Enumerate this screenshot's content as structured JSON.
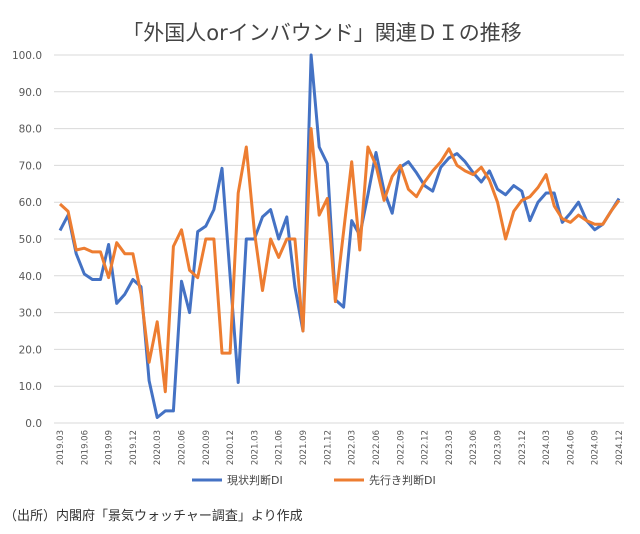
{
  "chart_data": {
    "type": "line",
    "title": "「外国人orインバウンド」関連ＤＩの推移",
    "xlabel": "",
    "ylabel": "",
    "ylim": [
      0,
      100
    ],
    "yticks": [
      "0.0",
      "10.0",
      "20.0",
      "30.0",
      "40.0",
      "50.0",
      "60.0",
      "70.0",
      "80.0",
      "90.0",
      "100.0"
    ],
    "grid": true,
    "legend_position": "bottom",
    "start_month": "2019.03",
    "xtick_labels": [
      "2019.03",
      "2019.06",
      "2019.09",
      "2019.12",
      "2020.03",
      "2020.06",
      "2020.09",
      "2020.12",
      "2021.03",
      "2021.06",
      "2021.09",
      "2021.12",
      "2022.03",
      "2022.06",
      "2022.09",
      "2022.12",
      "2023.03",
      "2023.06",
      "2023.09",
      "2023.12",
      "2024.03",
      "2024.06",
      "2024.09",
      "2024.12"
    ],
    "series": [
      {
        "name": "現状判断DI",
        "color": "#4472C4",
        "values": [
          52.3,
          56.5,
          46,
          40.5,
          39,
          39,
          48.5,
          32.5,
          35,
          39,
          37,
          11.5,
          1.5,
          3.3,
          3.3,
          38.5,
          30,
          52,
          53.5,
          58,
          69.2,
          40,
          11,
          50,
          50,
          56,
          58,
          50,
          56,
          37,
          25,
          100,
          75,
          70.5,
          33.5,
          31.5,
          55,
          51,
          62,
          73.5,
          63,
          57,
          69.5,
          71,
          68,
          64.5,
          63,
          69.5,
          72,
          73.2,
          71,
          68,
          65.5,
          68.5,
          63.5,
          62,
          64.5,
          63,
          55,
          60,
          62.5,
          62.5,
          54.5,
          57,
          60,
          55,
          52.5,
          54,
          57.5,
          61
        ]
      },
      {
        "name": "先行き判断DI",
        "color": "#ED7D31",
        "values": [
          59.5,
          57.5,
          47,
          47.5,
          46.5,
          46.5,
          39.5,
          49,
          46,
          46,
          35,
          16.5,
          27.5,
          8.5,
          48,
          52.5,
          41.5,
          39.5,
          50,
          50,
          19,
          19,
          62.5,
          75,
          52,
          36,
          50,
          45,
          50,
          50,
          25,
          80,
          56.5,
          61,
          33,
          52,
          71,
          47,
          75,
          70,
          60.5,
          67,
          70,
          63.5,
          61.5,
          65.5,
          68.5,
          71,
          74.5,
          70,
          68.5,
          67.5,
          69.5,
          66,
          60,
          50,
          57.5,
          60.5,
          61.5,
          64,
          67.5,
          59,
          55.5,
          54.5,
          56.5,
          55,
          54,
          54,
          57.5,
          60.5
        ]
      }
    ]
  },
  "footer": "（出所）内閣府「景気ウォッチャー調査」より作成"
}
